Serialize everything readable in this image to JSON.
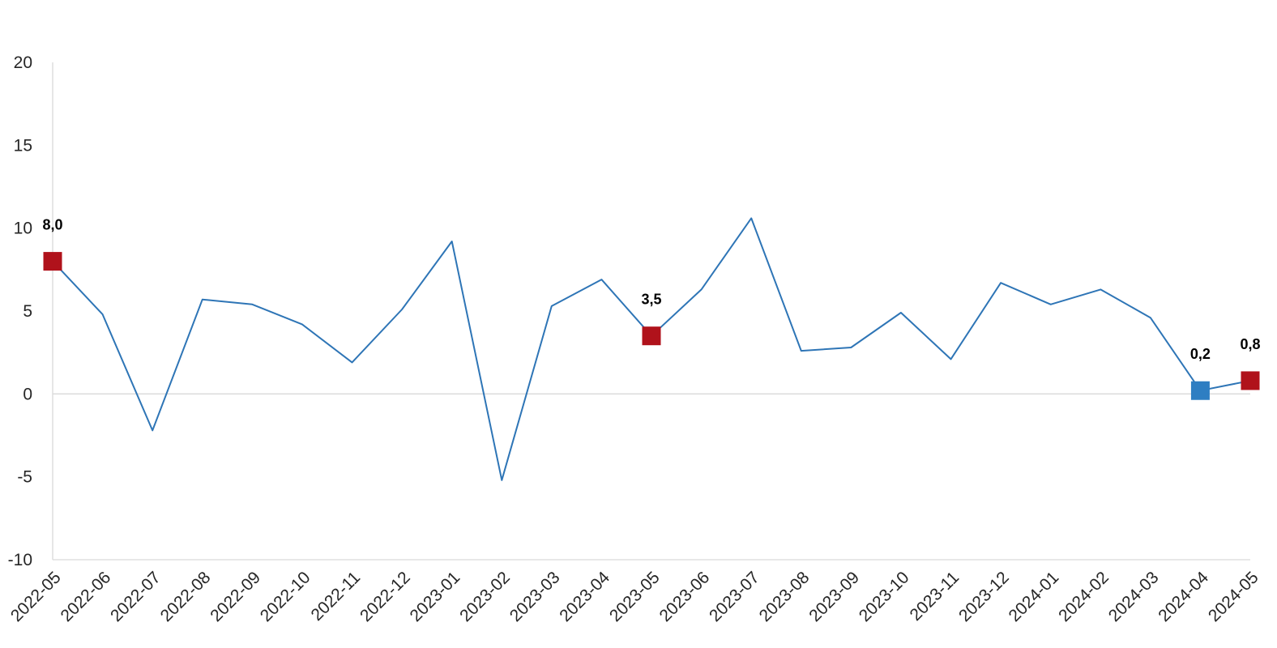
{
  "chart_data": {
    "type": "line",
    "x": [
      "2022-05",
      "2022-06",
      "2022-07",
      "2022-08",
      "2022-09",
      "2022-10",
      "2022-11",
      "2022-12",
      "2023-01",
      "2023-02",
      "2023-03",
      "2023-04",
      "2023-05",
      "2023-06",
      "2023-07",
      "2023-08",
      "2023-09",
      "2023-10",
      "2023-11",
      "2023-12",
      "2024-01",
      "2024-02",
      "2024-03",
      "2024-04",
      "2024-05"
    ],
    "series": [
      {
        "values": [
          8.0,
          4.8,
          -2.2,
          5.7,
          5.4,
          4.2,
          1.9,
          5.1,
          9.2,
          -5.2,
          5.3,
          6.9,
          3.5,
          6.3,
          10.6,
          2.6,
          2.8,
          4.9,
          2.1,
          6.7,
          5.4,
          6.3,
          4.6,
          0.2,
          0.8
        ]
      }
    ],
    "highlights": [
      {
        "x": "2022-05",
        "label": "8,0",
        "color": "#B0121B"
      },
      {
        "x": "2023-05",
        "label": "3,5",
        "color": "#B0121B"
      },
      {
        "x": "2024-04",
        "label": "0,2",
        "color": "#2E7EC2"
      },
      {
        "x": "2024-05",
        "label": "0,8",
        "color": "#B0121B"
      }
    ],
    "ylim": [
      -10,
      20
    ],
    "yticks": [
      "-10",
      "-5",
      "0",
      "5",
      "10",
      "15",
      "20"
    ],
    "line_color": "#2E75B6",
    "axis_color": "#D9D9D9",
    "grid": false,
    "legend": "none",
    "title": "",
    "xlabel": "",
    "ylabel": ""
  }
}
